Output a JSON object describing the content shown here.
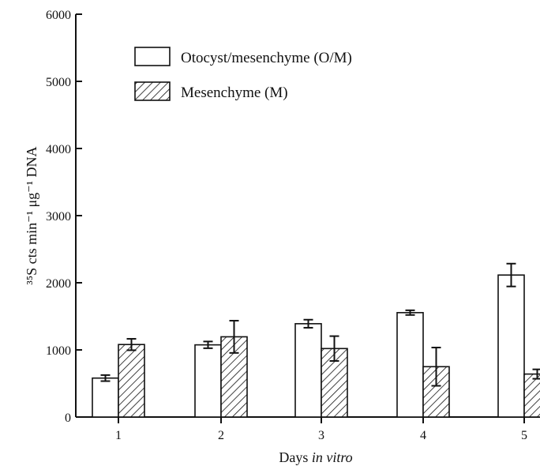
{
  "chart_data": {
    "type": "bar",
    "categories": [
      "1",
      "2",
      "3",
      "4",
      "5"
    ],
    "series": [
      {
        "name": "Otocyst/mesenchyme (O/M)",
        "values": [
          580,
          1075,
          1390,
          1555,
          2115
        ],
        "error": [
          45,
          50,
          60,
          35,
          170
        ],
        "fill": "#ffffff"
      },
      {
        "name": "Mesenchyme (M)",
        "values": [
          1080,
          1195,
          1020,
          750,
          640
        ],
        "error": [
          85,
          240,
          185,
          285,
          70
        ],
        "fill": "hatched"
      }
    ],
    "yticks": [
      0,
      1000,
      2000,
      3000,
      4000,
      5000,
      6000
    ],
    "ylim": [
      0,
      6000
    ],
    "xlabel_prefix": "Days ",
    "xlabel_italic": "in vitro",
    "ylabel": "³⁵S cts min⁻¹ μg⁻¹ DNA",
    "legend_position": "top-left",
    "grid": false,
    "colors": {
      "stroke": "#111111",
      "background": "#ffffff"
    }
  }
}
